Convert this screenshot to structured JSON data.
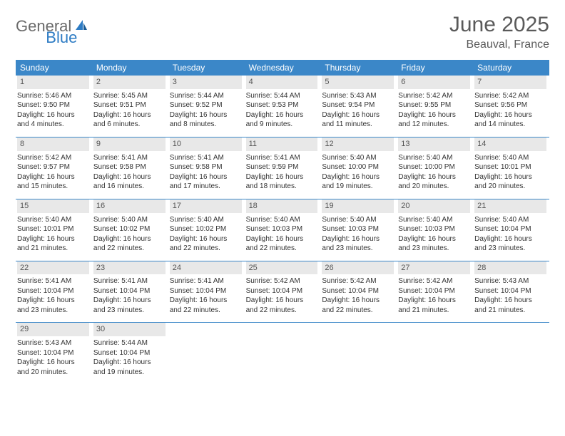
{
  "logo": {
    "text1": "General",
    "text2": "Blue"
  },
  "title": "June 2025",
  "location": "Beauval, France",
  "colors": {
    "header_bg": "#3b87c8",
    "header_fg": "#ffffff",
    "daynum_bg": "#e8e8e8",
    "text": "#333333",
    "logo_gray": "#6a6a6a",
    "logo_blue": "#2e7cc4",
    "title_color": "#5a5a5a"
  },
  "weekdays": [
    "Sunday",
    "Monday",
    "Tuesday",
    "Wednesday",
    "Thursday",
    "Friday",
    "Saturday"
  ],
  "weeks": [
    [
      {
        "n": "1",
        "sr": "Sunrise: 5:46 AM",
        "ss": "Sunset: 9:50 PM",
        "d1": "Daylight: 16 hours",
        "d2": "and 4 minutes."
      },
      {
        "n": "2",
        "sr": "Sunrise: 5:45 AM",
        "ss": "Sunset: 9:51 PM",
        "d1": "Daylight: 16 hours",
        "d2": "and 6 minutes."
      },
      {
        "n": "3",
        "sr": "Sunrise: 5:44 AM",
        "ss": "Sunset: 9:52 PM",
        "d1": "Daylight: 16 hours",
        "d2": "and 8 minutes."
      },
      {
        "n": "4",
        "sr": "Sunrise: 5:44 AM",
        "ss": "Sunset: 9:53 PM",
        "d1": "Daylight: 16 hours",
        "d2": "and 9 minutes."
      },
      {
        "n": "5",
        "sr": "Sunrise: 5:43 AM",
        "ss": "Sunset: 9:54 PM",
        "d1": "Daylight: 16 hours",
        "d2": "and 11 minutes."
      },
      {
        "n": "6",
        "sr": "Sunrise: 5:42 AM",
        "ss": "Sunset: 9:55 PM",
        "d1": "Daylight: 16 hours",
        "d2": "and 12 minutes."
      },
      {
        "n": "7",
        "sr": "Sunrise: 5:42 AM",
        "ss": "Sunset: 9:56 PM",
        "d1": "Daylight: 16 hours",
        "d2": "and 14 minutes."
      }
    ],
    [
      {
        "n": "8",
        "sr": "Sunrise: 5:42 AM",
        "ss": "Sunset: 9:57 PM",
        "d1": "Daylight: 16 hours",
        "d2": "and 15 minutes."
      },
      {
        "n": "9",
        "sr": "Sunrise: 5:41 AM",
        "ss": "Sunset: 9:58 PM",
        "d1": "Daylight: 16 hours",
        "d2": "and 16 minutes."
      },
      {
        "n": "10",
        "sr": "Sunrise: 5:41 AM",
        "ss": "Sunset: 9:58 PM",
        "d1": "Daylight: 16 hours",
        "d2": "and 17 minutes."
      },
      {
        "n": "11",
        "sr": "Sunrise: 5:41 AM",
        "ss": "Sunset: 9:59 PM",
        "d1": "Daylight: 16 hours",
        "d2": "and 18 minutes."
      },
      {
        "n": "12",
        "sr": "Sunrise: 5:40 AM",
        "ss": "Sunset: 10:00 PM",
        "d1": "Daylight: 16 hours",
        "d2": "and 19 minutes."
      },
      {
        "n": "13",
        "sr": "Sunrise: 5:40 AM",
        "ss": "Sunset: 10:00 PM",
        "d1": "Daylight: 16 hours",
        "d2": "and 20 minutes."
      },
      {
        "n": "14",
        "sr": "Sunrise: 5:40 AM",
        "ss": "Sunset: 10:01 PM",
        "d1": "Daylight: 16 hours",
        "d2": "and 20 minutes."
      }
    ],
    [
      {
        "n": "15",
        "sr": "Sunrise: 5:40 AM",
        "ss": "Sunset: 10:01 PM",
        "d1": "Daylight: 16 hours",
        "d2": "and 21 minutes."
      },
      {
        "n": "16",
        "sr": "Sunrise: 5:40 AM",
        "ss": "Sunset: 10:02 PM",
        "d1": "Daylight: 16 hours",
        "d2": "and 22 minutes."
      },
      {
        "n": "17",
        "sr": "Sunrise: 5:40 AM",
        "ss": "Sunset: 10:02 PM",
        "d1": "Daylight: 16 hours",
        "d2": "and 22 minutes."
      },
      {
        "n": "18",
        "sr": "Sunrise: 5:40 AM",
        "ss": "Sunset: 10:03 PM",
        "d1": "Daylight: 16 hours",
        "d2": "and 22 minutes."
      },
      {
        "n": "19",
        "sr": "Sunrise: 5:40 AM",
        "ss": "Sunset: 10:03 PM",
        "d1": "Daylight: 16 hours",
        "d2": "and 23 minutes."
      },
      {
        "n": "20",
        "sr": "Sunrise: 5:40 AM",
        "ss": "Sunset: 10:03 PM",
        "d1": "Daylight: 16 hours",
        "d2": "and 23 minutes."
      },
      {
        "n": "21",
        "sr": "Sunrise: 5:40 AM",
        "ss": "Sunset: 10:04 PM",
        "d1": "Daylight: 16 hours",
        "d2": "and 23 minutes."
      }
    ],
    [
      {
        "n": "22",
        "sr": "Sunrise: 5:41 AM",
        "ss": "Sunset: 10:04 PM",
        "d1": "Daylight: 16 hours",
        "d2": "and 23 minutes."
      },
      {
        "n": "23",
        "sr": "Sunrise: 5:41 AM",
        "ss": "Sunset: 10:04 PM",
        "d1": "Daylight: 16 hours",
        "d2": "and 23 minutes."
      },
      {
        "n": "24",
        "sr": "Sunrise: 5:41 AM",
        "ss": "Sunset: 10:04 PM",
        "d1": "Daylight: 16 hours",
        "d2": "and 22 minutes."
      },
      {
        "n": "25",
        "sr": "Sunrise: 5:42 AM",
        "ss": "Sunset: 10:04 PM",
        "d1": "Daylight: 16 hours",
        "d2": "and 22 minutes."
      },
      {
        "n": "26",
        "sr": "Sunrise: 5:42 AM",
        "ss": "Sunset: 10:04 PM",
        "d1": "Daylight: 16 hours",
        "d2": "and 22 minutes."
      },
      {
        "n": "27",
        "sr": "Sunrise: 5:42 AM",
        "ss": "Sunset: 10:04 PM",
        "d1": "Daylight: 16 hours",
        "d2": "and 21 minutes."
      },
      {
        "n": "28",
        "sr": "Sunrise: 5:43 AM",
        "ss": "Sunset: 10:04 PM",
        "d1": "Daylight: 16 hours",
        "d2": "and 21 minutes."
      }
    ],
    [
      {
        "n": "29",
        "sr": "Sunrise: 5:43 AM",
        "ss": "Sunset: 10:04 PM",
        "d1": "Daylight: 16 hours",
        "d2": "and 20 minutes."
      },
      {
        "n": "30",
        "sr": "Sunrise: 5:44 AM",
        "ss": "Sunset: 10:04 PM",
        "d1": "Daylight: 16 hours",
        "d2": "and 19 minutes."
      },
      null,
      null,
      null,
      null,
      null
    ]
  ]
}
